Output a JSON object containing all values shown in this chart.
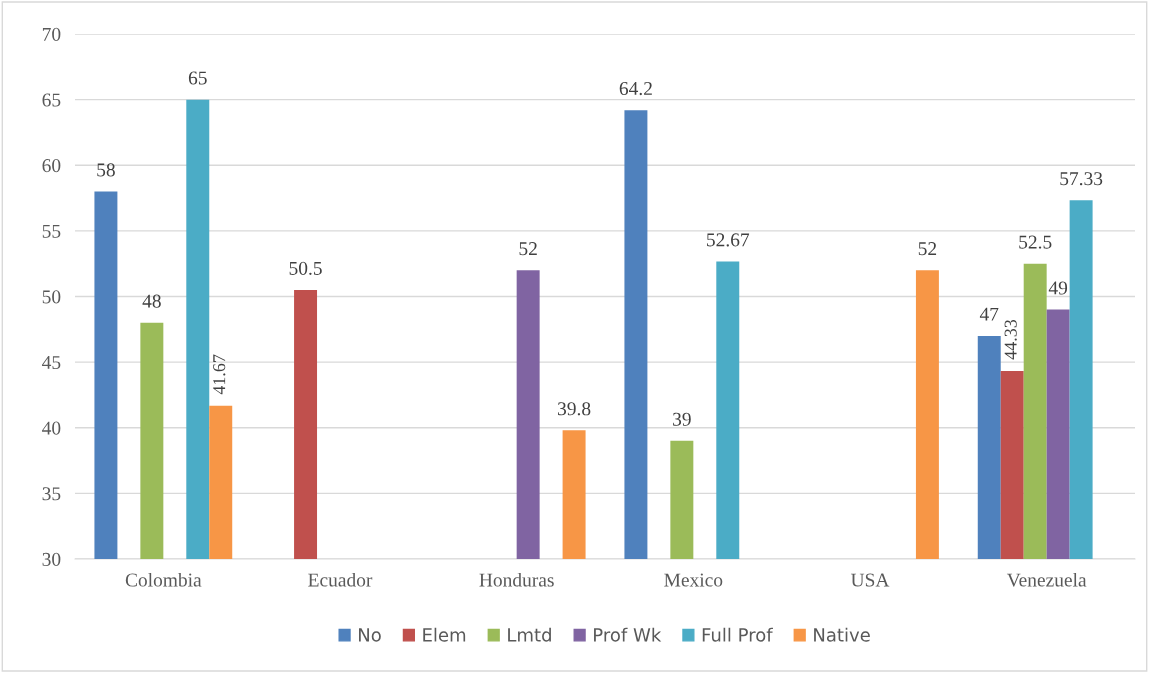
{
  "chart_data": {
    "type": "bar",
    "categories": [
      "Colombia",
      "Ecuador",
      "Honduras",
      "Mexico",
      "USA",
      "Venezuela"
    ],
    "series": [
      {
        "name": "No",
        "color": "#4f81bd",
        "values": [
          58,
          null,
          null,
          64.2,
          null,
          47
        ]
      },
      {
        "name": "Elem",
        "color": "#c0504d",
        "values": [
          null,
          50.5,
          null,
          null,
          null,
          44.33
        ]
      },
      {
        "name": "Lmtd",
        "color": "#9bbb59",
        "values": [
          48,
          null,
          null,
          39,
          null,
          52.5
        ]
      },
      {
        "name": "Prof Wk",
        "color": "#8064a2",
        "values": [
          null,
          null,
          52,
          null,
          null,
          49
        ]
      },
      {
        "name": "Full Prof",
        "color": "#4bacc6",
        "values": [
          65,
          null,
          null,
          52.67,
          null,
          57.33
        ]
      },
      {
        "name": "Native",
        "color": "#f79646",
        "values": [
          41.67,
          null,
          39.8,
          null,
          52,
          null
        ]
      }
    ],
    "ylim": [
      30,
      70
    ],
    "yticks": [
      30,
      35,
      40,
      45,
      50,
      55,
      60,
      65,
      70
    ],
    "grid": "y",
    "legend": "bottom",
    "data_labels": true
  }
}
